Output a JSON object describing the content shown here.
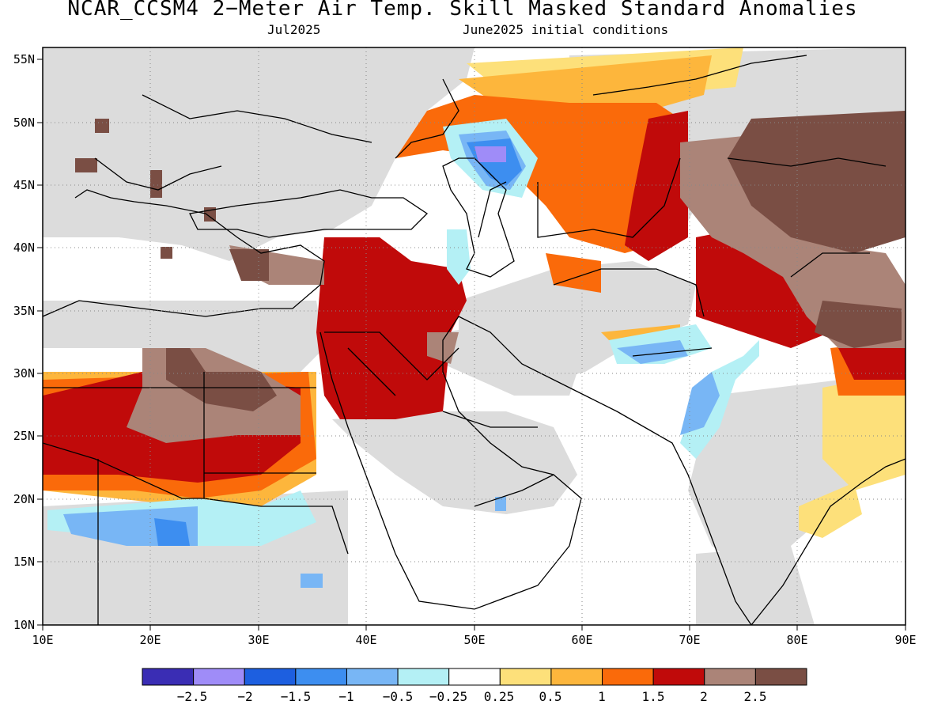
{
  "title": "NCAR_CCSM4 2−Meter Air Temp. Skill Masked Standard Anomalies",
  "subtitle_left": "Jul2025",
  "subtitle_right": "June2025 initial conditions",
  "map": {
    "lon_range": [
      10,
      90
    ],
    "lat_range": [
      10,
      56
    ],
    "lon_ticks": [
      "10E",
      "20E",
      "30E",
      "40E",
      "50E",
      "60E",
      "70E",
      "80E",
      "90E"
    ],
    "lat_ticks": [
      "55N",
      "50N",
      "45N",
      "40N",
      "35N",
      "30N",
      "25N",
      "20N",
      "15N",
      "10N"
    ],
    "grid": "dotted",
    "no_skill_color": "#dcdcdc"
  },
  "colorbar": {
    "colors": [
      "#3a2db4",
      "#9f8cf8",
      "#1d5fe0",
      "#3d8ef0",
      "#78b6f5",
      "#b4f0f5",
      "#ffffff",
      "#fde07a",
      "#fdb63c",
      "#fa6a0a",
      "#c00a0a",
      "#ab8478",
      "#7a4e44"
    ],
    "labels": [
      "−2.5",
      "−2",
      "−1.5",
      "−1",
      "−0.5",
      "−0.25",
      "0.25",
      "0.5",
      "1",
      "1.5",
      "2",
      "2.5"
    ]
  }
}
